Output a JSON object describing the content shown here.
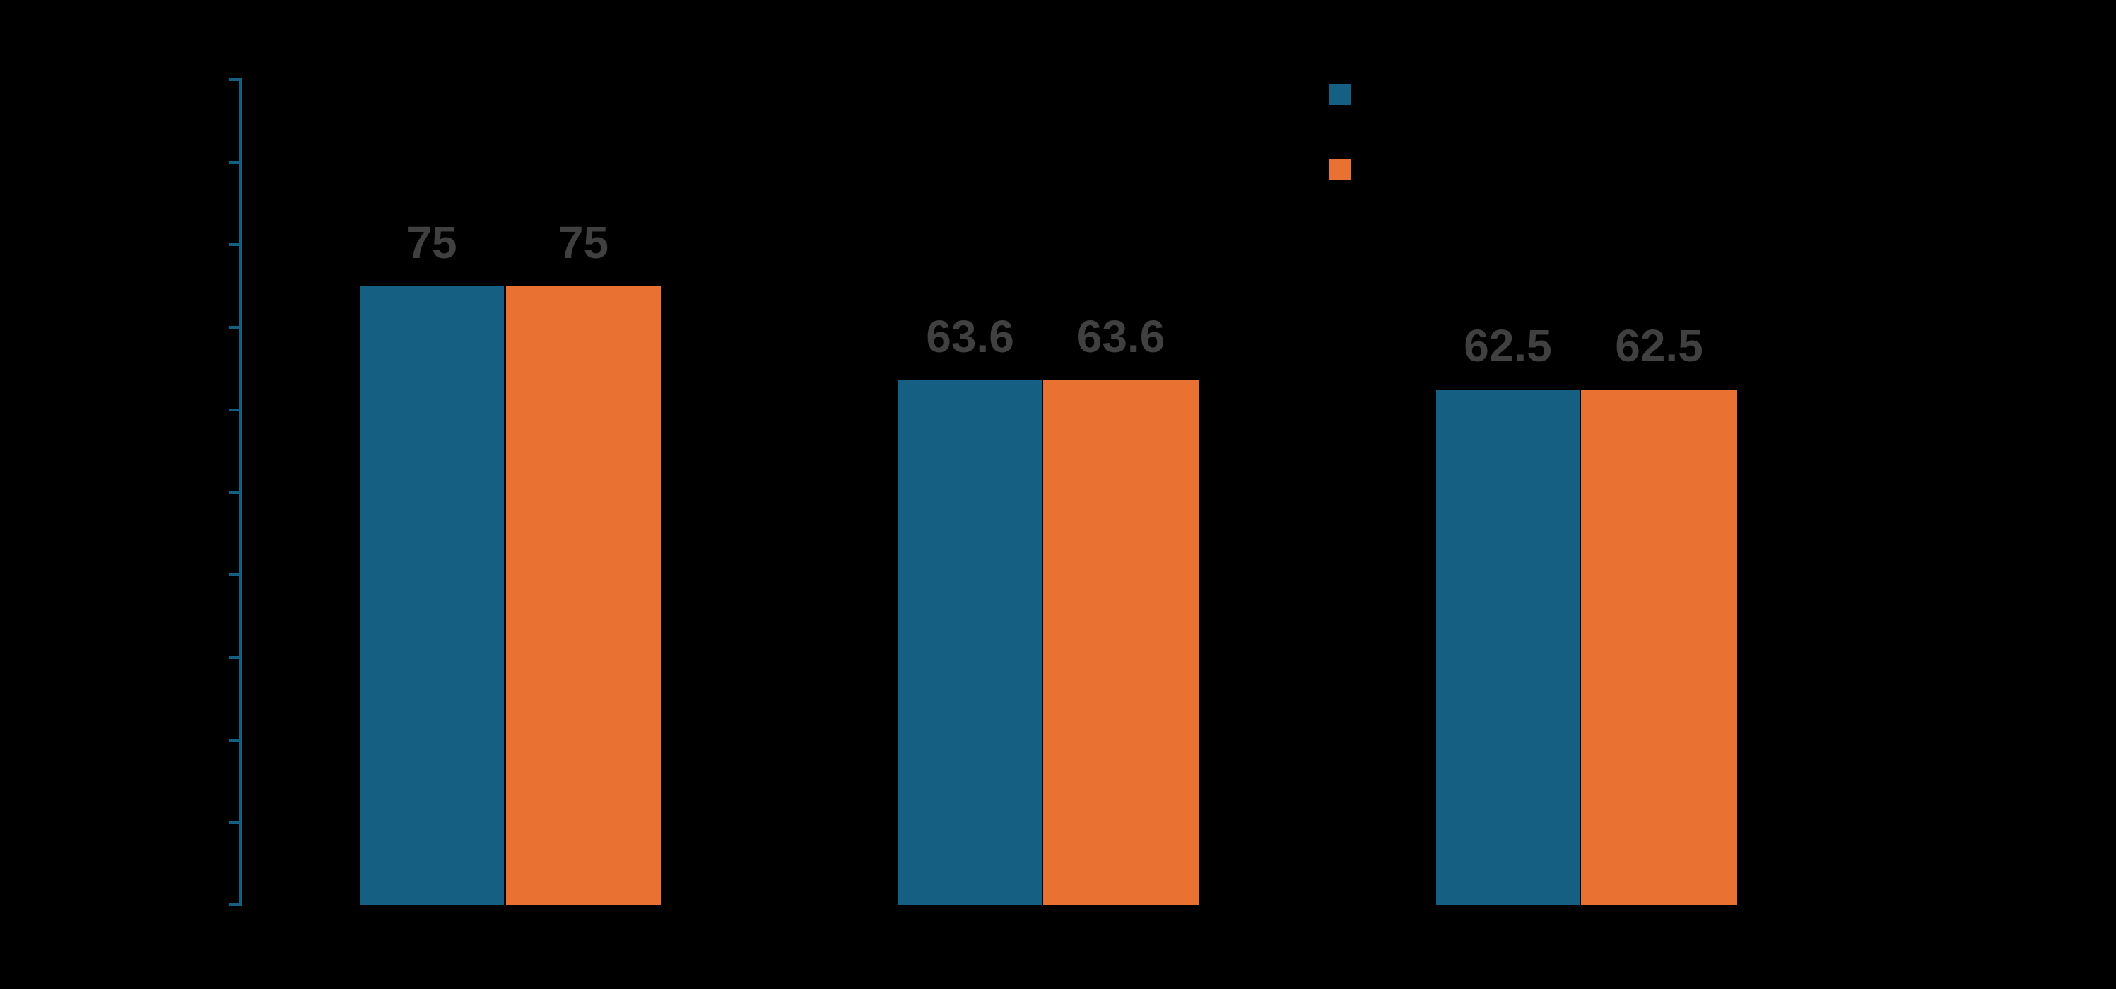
{
  "chart_data": {
    "type": "bar",
    "title": "",
    "xlabel": "",
    "ylabel": "",
    "categories": [
      "",
      "",
      ""
    ],
    "series": [
      {
        "name": "",
        "color": "#156082",
        "values": [
          75,
          63.6,
          62.5
        ],
        "labels": [
          "75",
          "63.6",
          "62.5"
        ]
      },
      {
        "name": "",
        "color": "#E97132",
        "values": [
          75,
          63.6,
          62.5
        ],
        "labels": [
          "75",
          "63.6",
          "62.5"
        ]
      }
    ],
    "ylim": [
      0,
      100
    ],
    "y_tick_step": 10,
    "y_tick_count": 11,
    "y_tick_labels_visible": false,
    "grid": false,
    "legend_position": "top-right",
    "data_label_color": "#404040",
    "axis_color": "#156082",
    "background_color": "#000000"
  },
  "legend": {
    "entries": [
      {
        "swatch_color": "#156082",
        "label": ""
      },
      {
        "swatch_color": "#E97132",
        "label": ""
      }
    ]
  }
}
